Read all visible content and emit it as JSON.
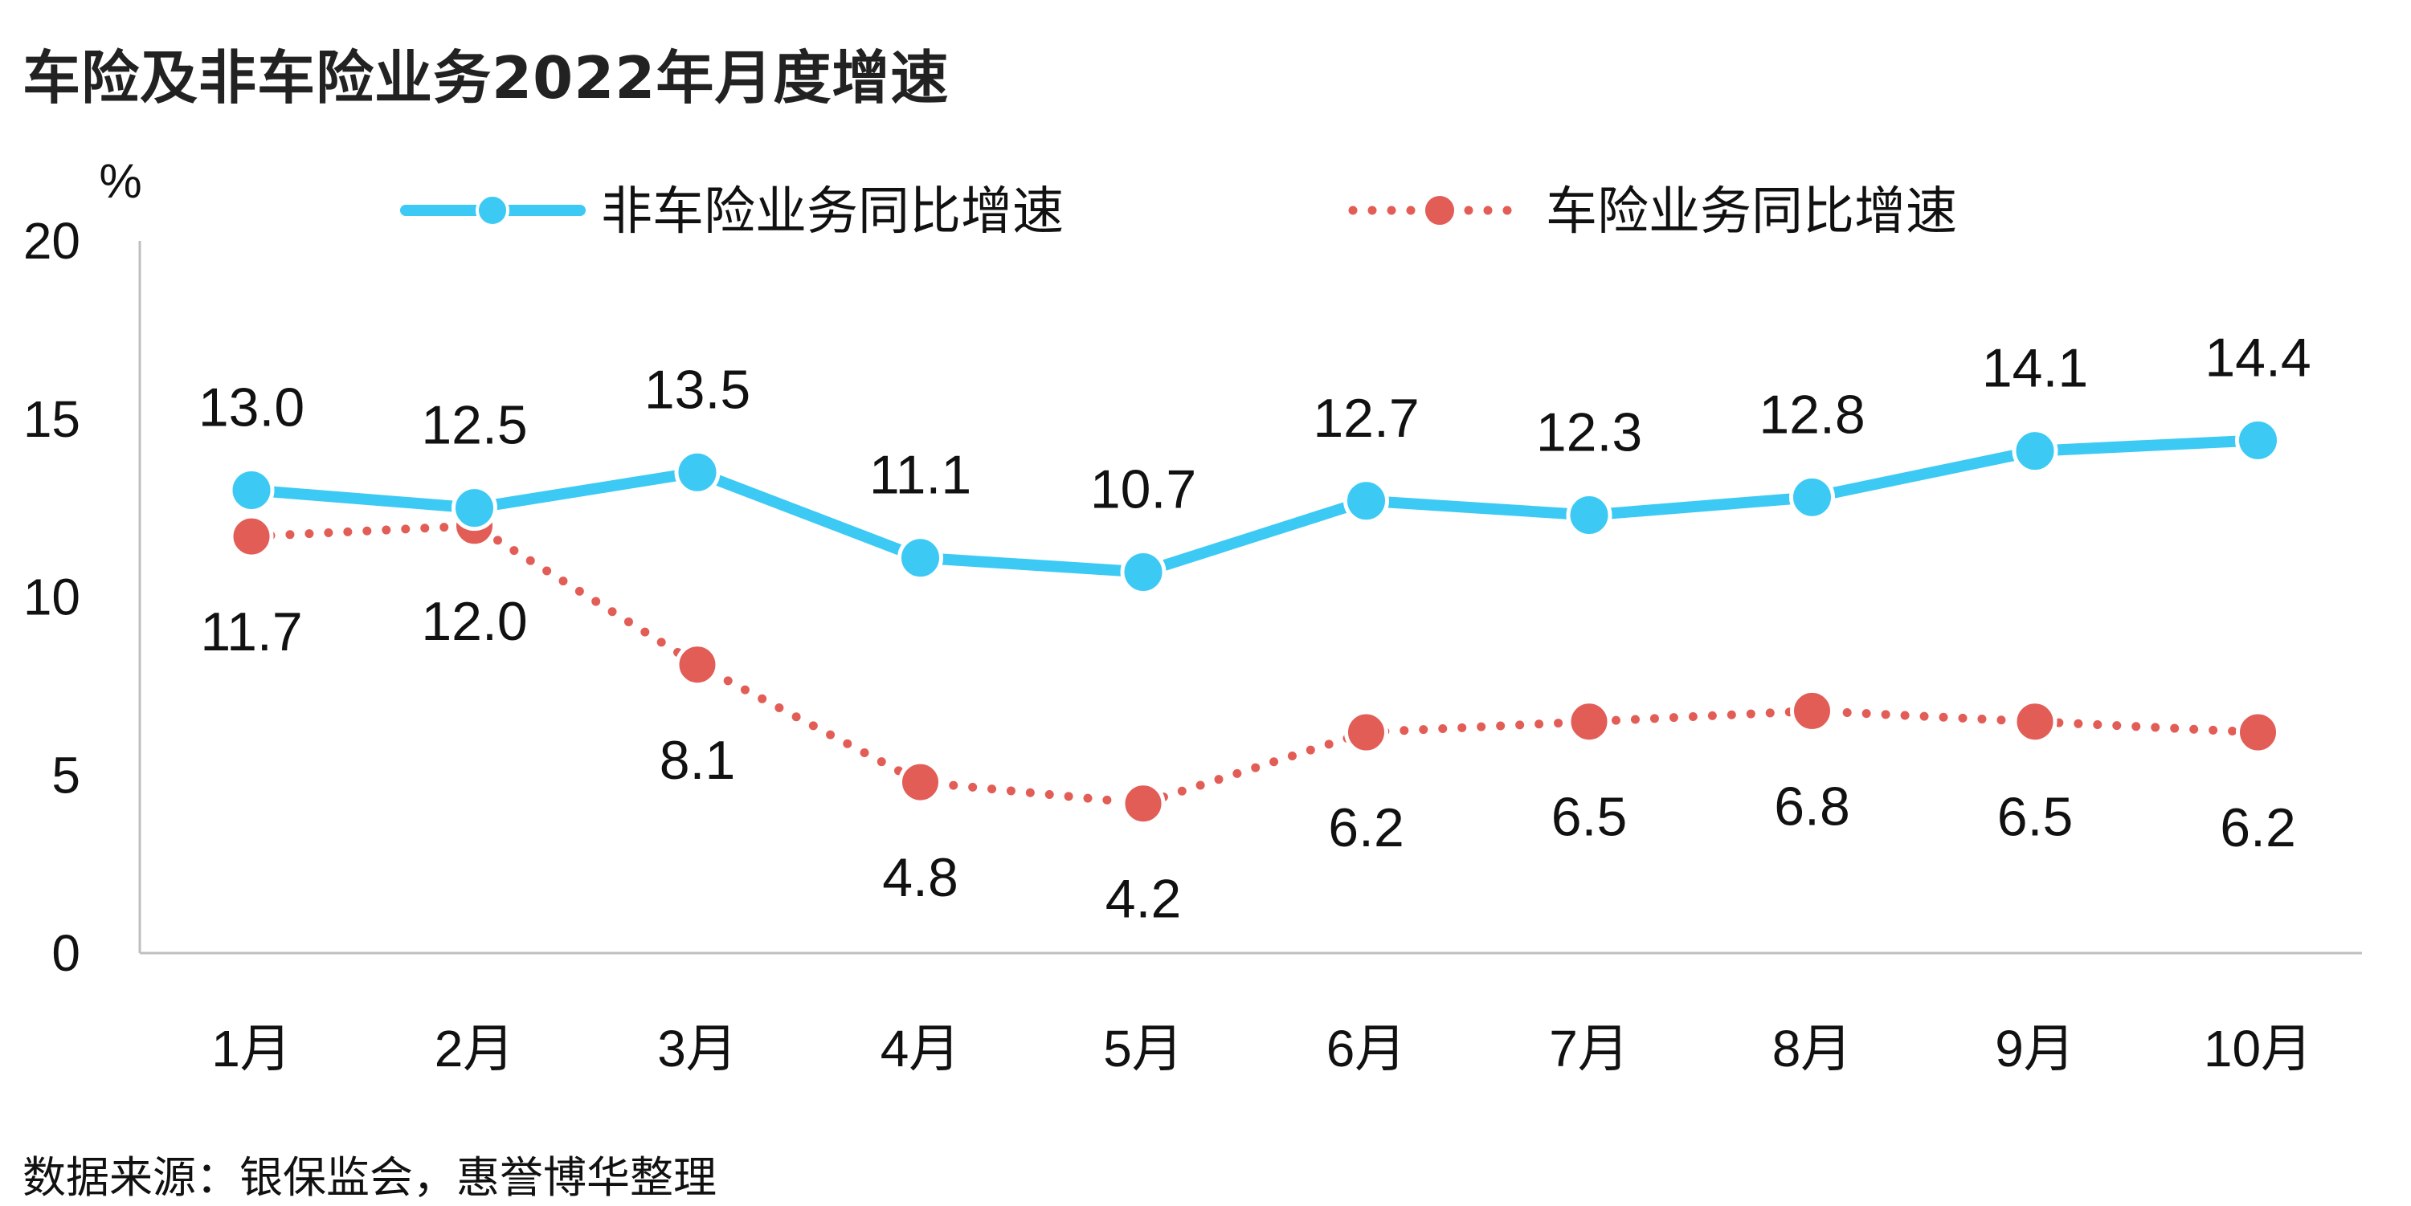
{
  "title": "车险及非车险业务2022年月度增速",
  "source_note": "数据来源：银保监会，惠誉博华整理",
  "chart_data": {
    "type": "line",
    "title": "车险及非车险业务2022年月度增速",
    "xlabel": "",
    "ylabel": "%",
    "ylim": [
      0,
      20
    ],
    "yticks": [
      "0",
      "5",
      "10",
      "15",
      "20"
    ],
    "categories": [
      "1月",
      "2月",
      "3月",
      "4月",
      "5月",
      "6月",
      "7月",
      "8月",
      "9月",
      "10月"
    ],
    "series": [
      {
        "name": "非车险业务同比增速",
        "values": [
          13.0,
          12.5,
          13.5,
          11.1,
          10.7,
          12.7,
          12.3,
          12.8,
          14.1,
          14.4
        ],
        "labels": [
          "13.0",
          "12.5",
          "13.5",
          "11.1",
          "10.7",
          "12.7",
          "12.3",
          "12.8",
          "14.1",
          "14.4"
        ],
        "color": "#3ccaf4",
        "style": "solid"
      },
      {
        "name": "车险业务同比增速",
        "values": [
          11.7,
          12.0,
          8.1,
          4.8,
          4.2,
          6.2,
          6.5,
          6.8,
          6.5,
          6.2
        ],
        "labels": [
          "11.7",
          "12.0",
          "8.1",
          "4.8",
          "4.2",
          "6.2",
          "6.5",
          "6.8",
          "6.5",
          "6.2"
        ],
        "color": "#e35d57",
        "style": "dotted"
      }
    ],
    "legend_position": "top",
    "grid": false
  }
}
